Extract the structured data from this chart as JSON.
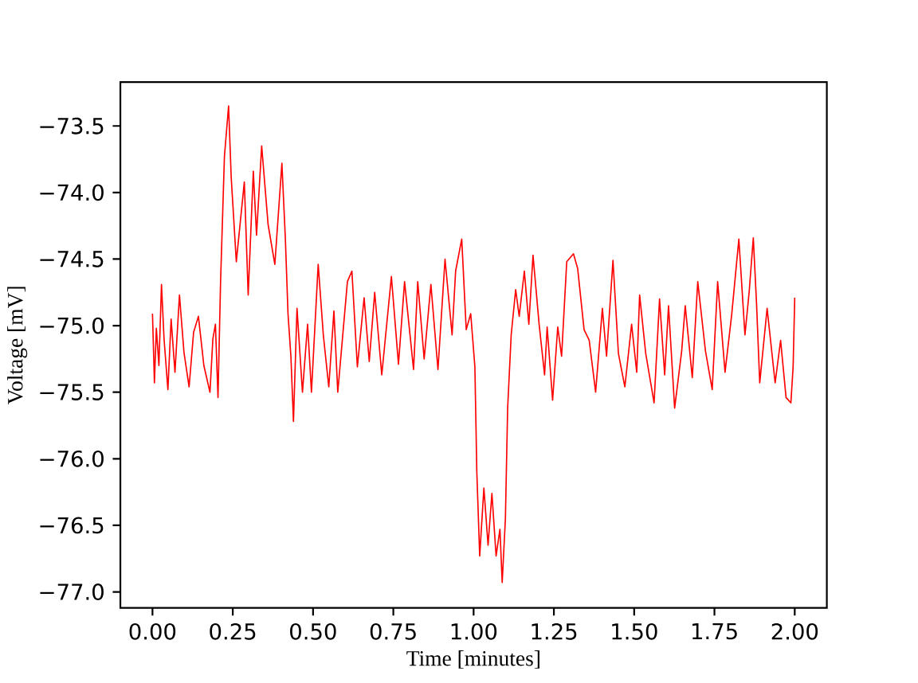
{
  "chart_data": {
    "type": "line",
    "xlabel": "Time [minutes]",
    "ylabel": "Voltage [mV]",
    "x": [
      0.0,
      0.006,
      0.012,
      0.02,
      0.028,
      0.036,
      0.048,
      0.058,
      0.07,
      0.084,
      0.098,
      0.114,
      0.128,
      0.143,
      0.16,
      0.179,
      0.188,
      0.196,
      0.204,
      0.212,
      0.224,
      0.237,
      0.245,
      0.261,
      0.286,
      0.298,
      0.314,
      0.324,
      0.34,
      0.36,
      0.381,
      0.403,
      0.414,
      0.422,
      0.431,
      0.439,
      0.45,
      0.467,
      0.483,
      0.495,
      0.516,
      0.532,
      0.549,
      0.565,
      0.577,
      0.607,
      0.621,
      0.638,
      0.659,
      0.675,
      0.692,
      0.714,
      0.744,
      0.766,
      0.785,
      0.813,
      0.826,
      0.846,
      0.867,
      0.889,
      0.911,
      0.933,
      0.944,
      0.963,
      0.977,
      0.991,
      1.004,
      1.01,
      1.019,
      1.032,
      1.045,
      1.057,
      1.07,
      1.082,
      1.089,
      1.099,
      1.106,
      1.117,
      1.131,
      1.142,
      1.158,
      1.172,
      1.185,
      1.204,
      1.221,
      1.229,
      1.246,
      1.262,
      1.274,
      1.29,
      1.311,
      1.324,
      1.344,
      1.36,
      1.38,
      1.401,
      1.414,
      1.434,
      1.451,
      1.471,
      1.492,
      1.508,
      1.517,
      1.536,
      1.562,
      1.579,
      1.595,
      1.607,
      1.626,
      1.648,
      1.659,
      1.681,
      1.698,
      1.722,
      1.743,
      1.76,
      1.783,
      1.804,
      1.826,
      1.845,
      1.858,
      1.871,
      1.881,
      1.891,
      1.914,
      1.939,
      1.956,
      1.973,
      1.988,
      1.995,
      2.0
    ],
    "series": [
      {
        "color": "#ff0000",
        "values": [
          -74.91,
          -75.43,
          -75.02,
          -75.3,
          -74.69,
          -75.1,
          -75.48,
          -74.95,
          -75.35,
          -74.77,
          -75.2,
          -75.46,
          -75.05,
          -74.93,
          -75.3,
          -75.5,
          -75.1,
          -74.99,
          -75.54,
          -74.67,
          -73.73,
          -73.35,
          -73.88,
          -74.52,
          -73.92,
          -74.77,
          -73.84,
          -74.32,
          -73.65,
          -74.24,
          -74.54,
          -73.78,
          -74.36,
          -74.91,
          -75.23,
          -75.72,
          -74.87,
          -75.5,
          -74.99,
          -75.5,
          -74.54,
          -75.07,
          -75.46,
          -74.89,
          -75.5,
          -74.67,
          -74.59,
          -75.31,
          -74.79,
          -75.27,
          -74.75,
          -75.37,
          -74.63,
          -75.29,
          -74.67,
          -75.33,
          -74.67,
          -75.25,
          -74.69,
          -75.33,
          -74.5,
          -75.07,
          -74.59,
          -74.35,
          -75.03,
          -74.91,
          -75.31,
          -76.1,
          -76.73,
          -76.22,
          -76.65,
          -76.26,
          -76.73,
          -76.53,
          -76.93,
          -76.45,
          -75.62,
          -75.07,
          -74.73,
          -74.93,
          -74.59,
          -74.99,
          -74.47,
          -74.99,
          -75.37,
          -75.01,
          -75.56,
          -75.01,
          -75.23,
          -74.52,
          -74.46,
          -74.57,
          -75.03,
          -75.11,
          -75.5,
          -74.87,
          -75.23,
          -74.51,
          -75.21,
          -75.46,
          -74.99,
          -75.35,
          -74.77,
          -75.21,
          -75.58,
          -74.8,
          -75.37,
          -74.85,
          -75.62,
          -75.19,
          -74.85,
          -75.39,
          -74.67,
          -75.19,
          -75.48,
          -74.67,
          -75.35,
          -74.91,
          -74.35,
          -75.07,
          -74.75,
          -74.34,
          -74.83,
          -75.43,
          -74.87,
          -75.43,
          -75.11,
          -75.54,
          -75.58,
          -75.31,
          -74.79
        ]
      }
    ],
    "xlim": [
      -0.1,
      2.1
    ],
    "ylim": [
      -77.12,
      -73.17
    ],
    "xticks": [
      {
        "value": 0,
        "label": "0.00"
      },
      {
        "value": 0.25,
        "label": "0.25"
      },
      {
        "value": 0.5,
        "label": "0.50"
      },
      {
        "value": 0.75,
        "label": "0.75"
      },
      {
        "value": 1,
        "label": "1.00"
      },
      {
        "value": 1.25,
        "label": "1.25"
      },
      {
        "value": 1.5,
        "label": "1.50"
      },
      {
        "value": 1.75,
        "label": "1.75"
      },
      {
        "value": 2,
        "label": "2.00"
      }
    ],
    "yticks": [
      {
        "value": -77,
        "label": "−77.0"
      },
      {
        "value": -76.5,
        "label": "−76.5"
      },
      {
        "value": -76,
        "label": "−76.0"
      },
      {
        "value": -75.5,
        "label": "−75.5"
      },
      {
        "value": -75,
        "label": "−75.0"
      },
      {
        "value": -74.5,
        "label": "−74.5"
      },
      {
        "value": -74,
        "label": "−74.0"
      },
      {
        "value": -73.5,
        "label": "−73.5"
      }
    ],
    "line_style": "solid"
  }
}
